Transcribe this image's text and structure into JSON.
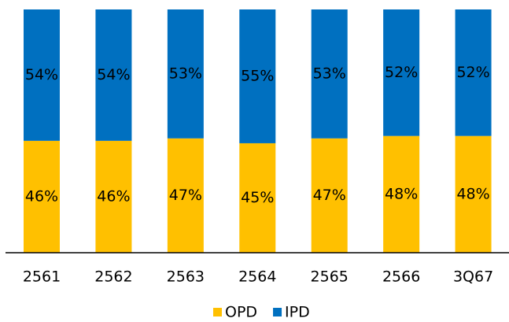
{
  "chart_data": {
    "type": "stacked_bar",
    "categories": [
      "2561",
      "2562",
      "2563",
      "2564",
      "2565",
      "2566",
      "3Q67"
    ],
    "series": [
      {
        "name": "OPD",
        "color": "#FFC000",
        "values": [
          46,
          46,
          47,
          45,
          47,
          48,
          48
        ],
        "value_labels": [
          "46%",
          "46%",
          "47%",
          "45%",
          "47%",
          "48%",
          "48%"
        ]
      },
      {
        "name": "IPD",
        "color": "#0070C0",
        "values": [
          54,
          54,
          53,
          55,
          53,
          52,
          52
        ],
        "value_labels": [
          "54%",
          "54%",
          "53%",
          "55%",
          "53%",
          "52%",
          "52%"
        ]
      }
    ],
    "ylim": [
      0,
      100
    ]
  }
}
